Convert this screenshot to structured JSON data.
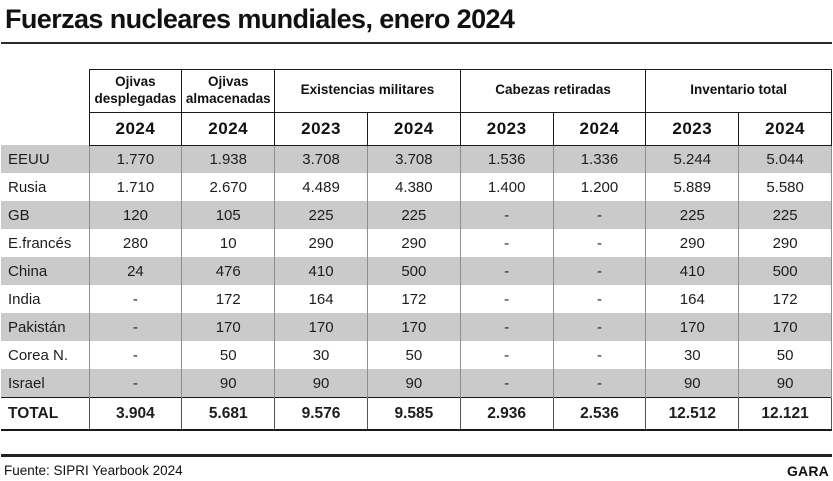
{
  "brand": "GARA",
  "colors": {
    "stripe": "#cacaca",
    "divider": "#8f8f8f",
    "border": "#1a1a1a",
    "text": "#1d1d1d",
    "rule": "#2b2b2b"
  },
  "chart_data": {
    "type": "table",
    "title": "Fuerzas nucleares mundiales, enero 2024",
    "source": "Fuente: SIPRI Yearbook 2024",
    "column_groups": [
      {
        "label": "Ojivas desplegadas",
        "span": 1
      },
      {
        "label": "Ojivas almacenadas",
        "span": 1
      },
      {
        "label": "Existencias militares",
        "span": 2
      },
      {
        "label": "Cabezas retiradas",
        "span": 2
      },
      {
        "label": "Inventario total",
        "span": 2
      }
    ],
    "year_headers": [
      "2024",
      "2024",
      "2023",
      "2024",
      "2023",
      "2024",
      "2023",
      "2024"
    ],
    "rows": [
      {
        "label": "EEUU",
        "values": [
          "1.770",
          "1.938",
          "3.708",
          "3.708",
          "1.536",
          "1.336",
          "5.244",
          "5.044"
        ]
      },
      {
        "label": "Rusia",
        "values": [
          "1.710",
          "2.670",
          "4.489",
          "4.380",
          "1.400",
          "1.200",
          "5.889",
          "5.580"
        ]
      },
      {
        "label": "GB",
        "values": [
          "120",
          "105",
          "225",
          "225",
          "-",
          "-",
          "225",
          "225"
        ]
      },
      {
        "label": "E.francés",
        "values": [
          "280",
          "10",
          "290",
          "290",
          "-",
          "-",
          "290",
          "290"
        ]
      },
      {
        "label": "China",
        "values": [
          "24",
          "476",
          "410",
          "500",
          "-",
          "-",
          "410",
          "500"
        ]
      },
      {
        "label": "India",
        "values": [
          "-",
          "172",
          "164",
          "172",
          "-",
          "-",
          "164",
          "172"
        ]
      },
      {
        "label": "Pakistán",
        "values": [
          "-",
          "170",
          "170",
          "170",
          "-",
          "-",
          "170",
          "170"
        ]
      },
      {
        "label": "Corea N.",
        "values": [
          "-",
          "50",
          "30",
          "50",
          "-",
          "-",
          "30",
          "50"
        ]
      },
      {
        "label": "Israel",
        "values": [
          "-",
          "90",
          "90",
          "90",
          "-",
          "-",
          "90",
          "90"
        ]
      }
    ],
    "total_row": {
      "label": "TOTAL",
      "values": [
        "3.904",
        "5.681",
        "9.576",
        "9.585",
        "2.936",
        "2.536",
        "12.512",
        "12.121"
      ]
    }
  }
}
